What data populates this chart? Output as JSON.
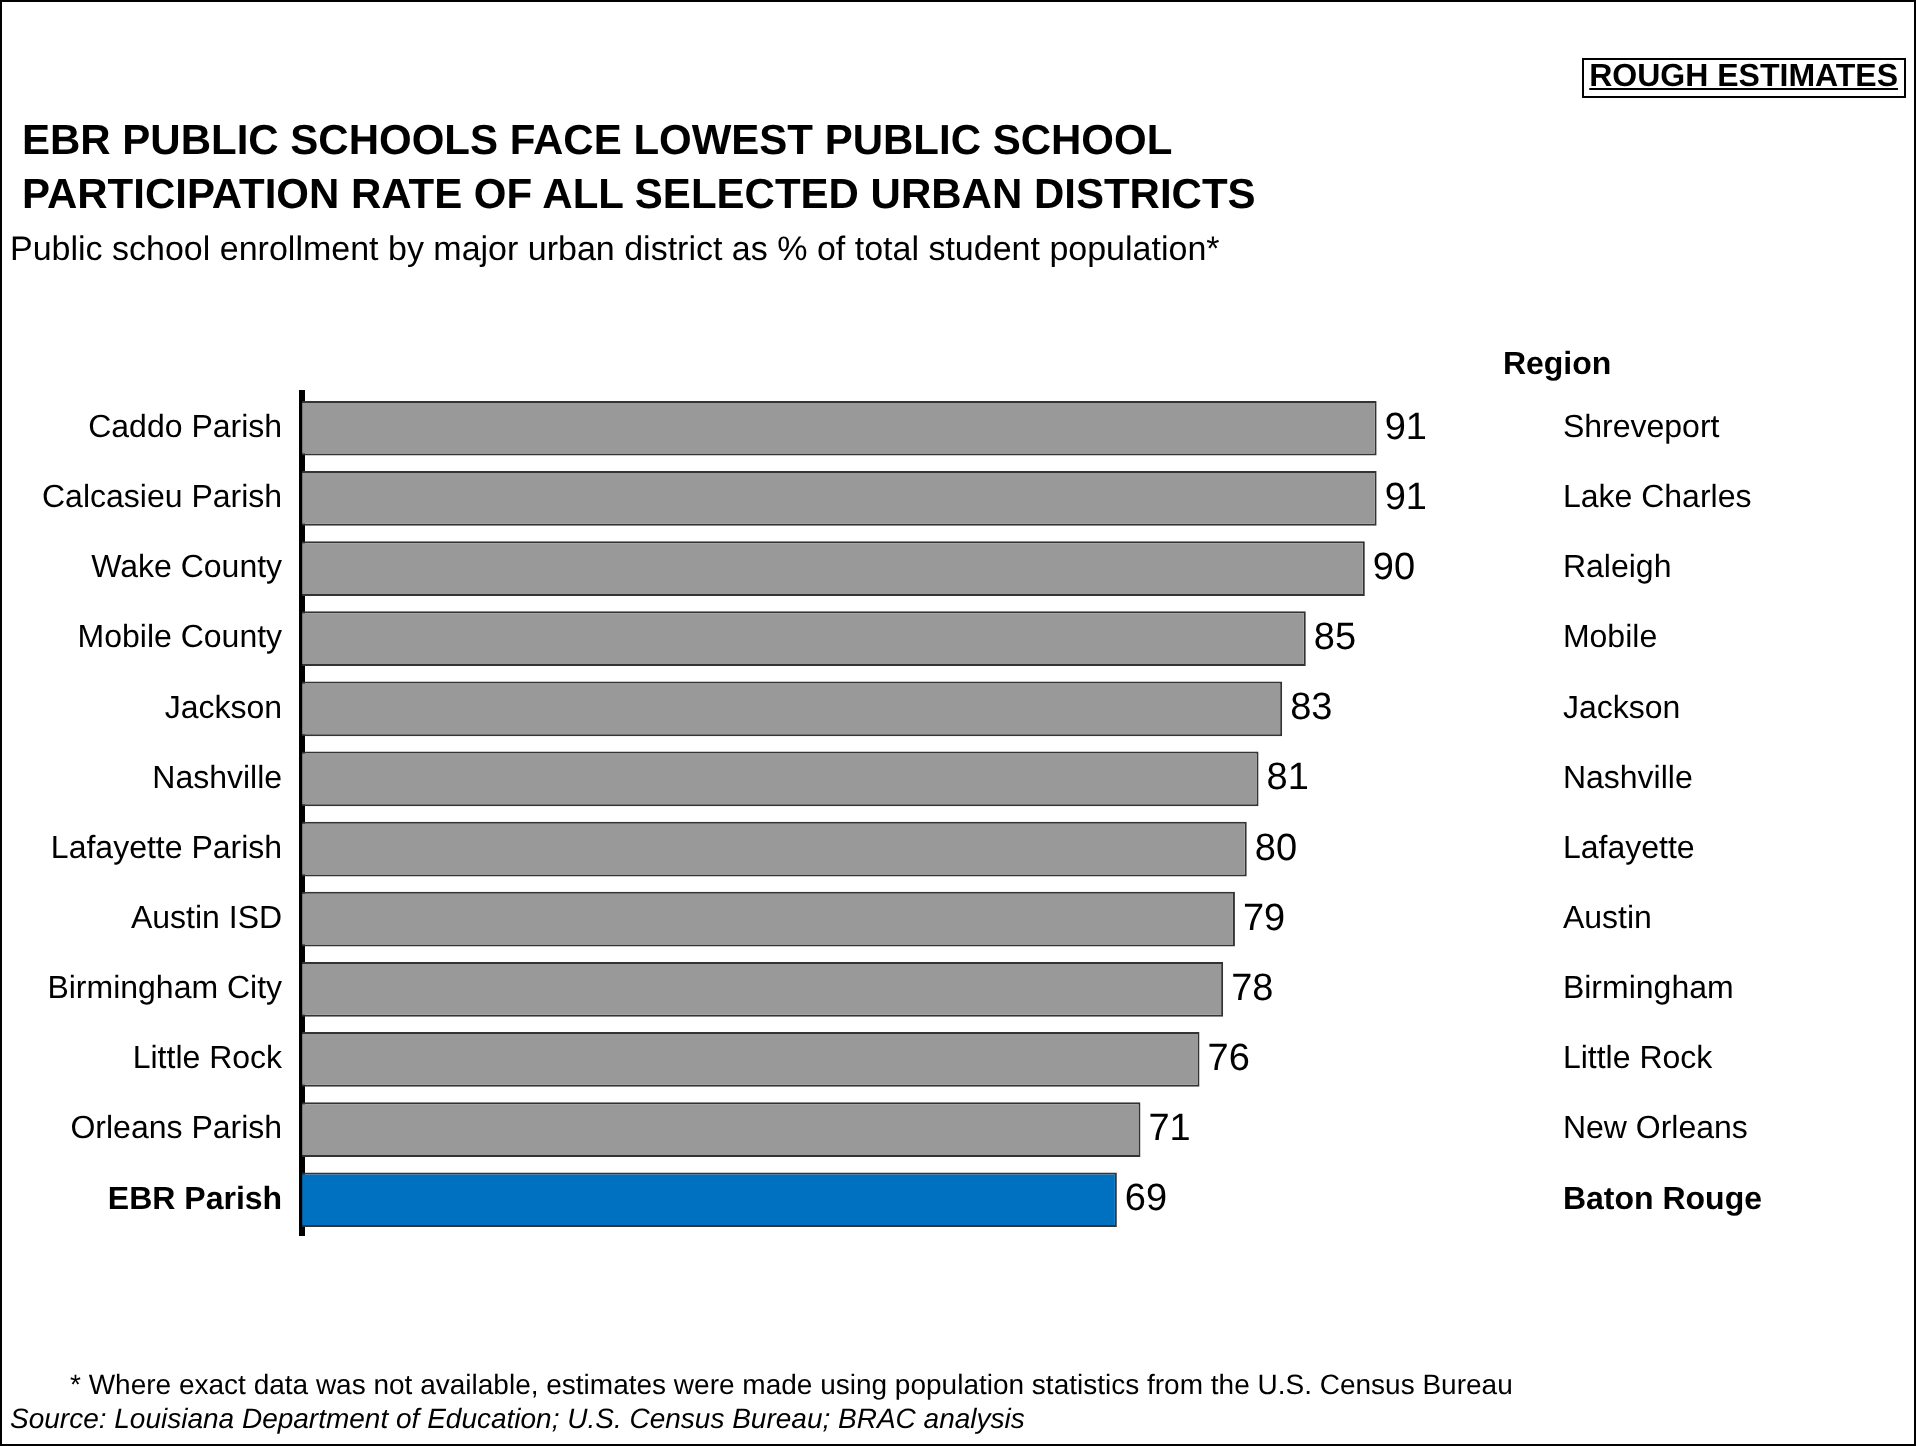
{
  "chart_data": {
    "type": "bar",
    "orientation": "horizontal",
    "title": "EBR PUBLIC SCHOOLS FACE LOWEST PUBLIC SCHOOL PARTICIPATION RATE OF ALL SELECTED URBAN DISTRICTS",
    "subtitle": "Public school enrollment by major urban district as % of total student population*",
    "categories": [
      "Caddo Parish",
      "Calcasieu Parish",
      "Wake County",
      "Mobile County",
      "Jackson",
      "Nashville",
      "Lafayette Parish",
      "Austin ISD",
      "Birmingham City",
      "Little Rock",
      "Orleans Parish",
      "EBR Parish"
    ],
    "y2_categories": [
      "Shreveport",
      "Lake Charles",
      "Raleigh",
      "Mobile",
      "Jackson",
      "Nashville",
      "Lafayette",
      "Austin",
      "Birmingham",
      "Little Rock",
      "New Orleans",
      "Baton Rouge"
    ],
    "y2label": "Region",
    "values": [
      91,
      91,
      90,
      85,
      83,
      81,
      80,
      79,
      78,
      76,
      71,
      69
    ],
    "colors": [
      "#999999",
      "#999999",
      "#999999",
      "#999999",
      "#999999",
      "#999999",
      "#999999",
      "#999999",
      "#999999",
      "#999999",
      "#999999",
      "#0070c0"
    ],
    "data_labels": true,
    "legend": false,
    "tick_labels": "y",
    "annotations": [
      "ROUGH ESTIMATES",
      "* Where exact data was not available, estimates were made using population statistics from the U.S. Census Bureau",
      "Source: Louisiana Department of Education; U.S. Census Bureau; BRAC analysis"
    ]
  }
}
